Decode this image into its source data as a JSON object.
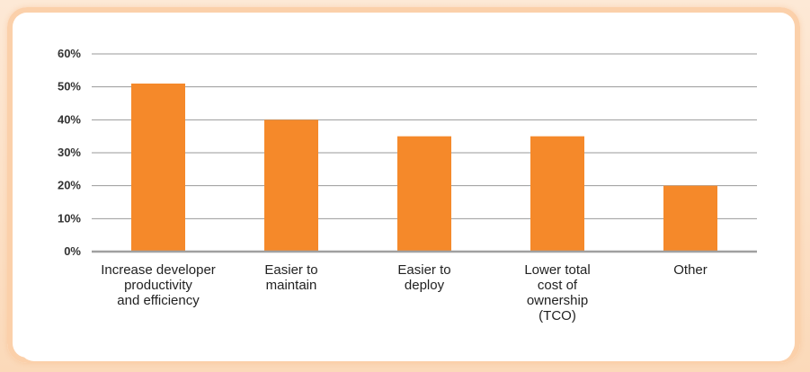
{
  "chart_data": {
    "type": "bar",
    "categories": [
      [
        "Increase developer",
        "productivity",
        "and efficiency"
      ],
      [
        "Easier to",
        "maintain"
      ],
      [
        "Easier to",
        "deploy"
      ],
      [
        "Lower total",
        "cost of",
        "ownership",
        "(TCO)"
      ],
      [
        "Other"
      ]
    ],
    "values": [
      51,
      40,
      35,
      35,
      20
    ],
    "ylim": [
      0,
      60
    ],
    "yticks": [
      "0%",
      "10%",
      "20%",
      "30%",
      "40%",
      "50%",
      "60%"
    ],
    "grid": true,
    "bar_color": "#f5892a",
    "grid_color": "#9a9a9a",
    "axis_color": "#a0a0a0",
    "title": "",
    "xlabel": "",
    "ylabel": ""
  }
}
